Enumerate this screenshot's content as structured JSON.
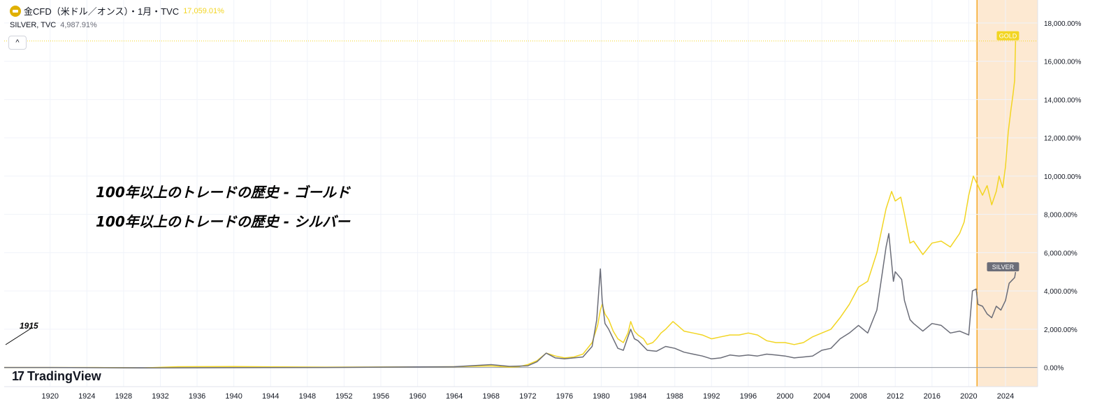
{
  "header": {
    "main_title": "金CFD（米ドル／オンス）・1月・TVC",
    "main_value": "17,059.01%",
    "secondary_title": "SILVER, TVC",
    "secondary_value": "4,987.91%",
    "collapse_label": "^"
  },
  "annotations": {
    "line1": "100年以上のトレードの歴史 - ゴールド",
    "line2": "100年以上のトレードの歴史 - シルバー",
    "start_year": "1915"
  },
  "brand": {
    "logo_mark": "17",
    "name": "TradingView"
  },
  "colors": {
    "gold": "#f2d522",
    "silver": "#6b6d78",
    "highlight": "#fde9d2",
    "highlight_edge": "#f5a623",
    "grid": "#f0f3fa"
  },
  "chart_data": {
    "type": "line",
    "series": [
      {
        "name": "GOLD",
        "points": [
          [
            1915,
            0
          ],
          [
            1920,
            0
          ],
          [
            1925,
            0
          ],
          [
            1930,
            -20
          ],
          [
            1934,
            40
          ],
          [
            1940,
            50
          ],
          [
            1950,
            20
          ],
          [
            1960,
            30
          ],
          [
            1964,
            40
          ],
          [
            1968,
            80
          ],
          [
            1970,
            20
          ],
          [
            1971,
            40
          ],
          [
            1972,
            150
          ],
          [
            1973,
            350
          ],
          [
            1974,
            750
          ],
          [
            1975,
            600
          ],
          [
            1976,
            500
          ],
          [
            1977,
            550
          ],
          [
            1978,
            700
          ],
          [
            1979,
            1300
          ],
          [
            1979.6,
            2200
          ],
          [
            1979.9,
            3000
          ],
          [
            1980.1,
            3300
          ],
          [
            1980.4,
            2800
          ],
          [
            1980.8,
            2500
          ],
          [
            1981.3,
            1900
          ],
          [
            1981.8,
            1500
          ],
          [
            1982.4,
            1300
          ],
          [
            1982.9,
            1800
          ],
          [
            1983.2,
            2400
          ],
          [
            1983.6,
            1900
          ],
          [
            1984,
            1700
          ],
          [
            1984.6,
            1500
          ],
          [
            1985,
            1200
          ],
          [
            1985.6,
            1300
          ],
          [
            1986,
            1500
          ],
          [
            1986.5,
            1800
          ],
          [
            1987,
            2000
          ],
          [
            1987.8,
            2400
          ],
          [
            1988.3,
            2200
          ],
          [
            1989,
            1900
          ],
          [
            1990,
            1800
          ],
          [
            1991,
            1700
          ],
          [
            1992,
            1500
          ],
          [
            1993,
            1600
          ],
          [
            1994,
            1700
          ],
          [
            1995,
            1700
          ],
          [
            1996,
            1800
          ],
          [
            1997,
            1700
          ],
          [
            1998,
            1400
          ],
          [
            1999,
            1300
          ],
          [
            2000,
            1300
          ],
          [
            2001,
            1200
          ],
          [
            2002,
            1300
          ],
          [
            2003,
            1600
          ],
          [
            2004,
            1800
          ],
          [
            2005,
            2000
          ],
          [
            2006,
            2600
          ],
          [
            2007,
            3300
          ],
          [
            2008,
            4200
          ],
          [
            2009,
            4500
          ],
          [
            2010,
            6000
          ],
          [
            2011,
            8300
          ],
          [
            2011.6,
            9200
          ],
          [
            2012,
            8700
          ],
          [
            2012.6,
            8900
          ],
          [
            2013,
            8000
          ],
          [
            2013.6,
            6500
          ],
          [
            2014,
            6600
          ],
          [
            2015,
            5900
          ],
          [
            2016,
            6500
          ],
          [
            2017,
            6600
          ],
          [
            2018,
            6300
          ],
          [
            2019,
            7000
          ],
          [
            2019.5,
            7600
          ],
          [
            2020,
            9000
          ],
          [
            2020.5,
            10000
          ],
          [
            2021,
            9500
          ],
          [
            2021.5,
            9000
          ],
          [
            2022,
            9500
          ],
          [
            2022.5,
            8500
          ],
          [
            2023,
            9200
          ],
          [
            2023.3,
            10000
          ],
          [
            2023.7,
            9400
          ],
          [
            2024,
            10500
          ],
          [
            2024.3,
            12300
          ],
          [
            2024.6,
            13500
          ],
          [
            2024.8,
            14200
          ],
          [
            2025,
            15000
          ],
          [
            2025.1,
            17059
          ]
        ]
      },
      {
        "name": "SILVER",
        "points": [
          [
            1915,
            0
          ],
          [
            1920,
            0
          ],
          [
            1930,
            -20
          ],
          [
            1940,
            -10
          ],
          [
            1950,
            0
          ],
          [
            1960,
            30
          ],
          [
            1964,
            40
          ],
          [
            1968,
            150
          ],
          [
            1970,
            60
          ],
          [
            1972,
            90
          ],
          [
            1973,
            300
          ],
          [
            1974,
            750
          ],
          [
            1975,
            500
          ],
          [
            1976,
            450
          ],
          [
            1977,
            500
          ],
          [
            1978,
            550
          ],
          [
            1979,
            1100
          ],
          [
            1979.5,
            2500
          ],
          [
            1979.8,
            4500
          ],
          [
            1979.9,
            5150
          ],
          [
            1980.1,
            3500
          ],
          [
            1980.4,
            2300
          ],
          [
            1980.8,
            2000
          ],
          [
            1981.3,
            1500
          ],
          [
            1981.8,
            1000
          ],
          [
            1982.4,
            900
          ],
          [
            1982.9,
            1600
          ],
          [
            1983.2,
            2000
          ],
          [
            1983.6,
            1500
          ],
          [
            1984,
            1400
          ],
          [
            1985,
            900
          ],
          [
            1986,
            850
          ],
          [
            1987,
            1100
          ],
          [
            1988,
            1000
          ],
          [
            1989,
            800
          ],
          [
            1990,
            700
          ],
          [
            1991,
            600
          ],
          [
            1992,
            450
          ],
          [
            1993,
            500
          ],
          [
            1994,
            650
          ],
          [
            1995,
            600
          ],
          [
            1996,
            650
          ],
          [
            1997,
            600
          ],
          [
            1998,
            700
          ],
          [
            1999,
            650
          ],
          [
            2000,
            600
          ],
          [
            2001,
            500
          ],
          [
            2002,
            550
          ],
          [
            2003,
            600
          ],
          [
            2004,
            900
          ],
          [
            2005,
            1000
          ],
          [
            2006,
            1500
          ],
          [
            2007,
            1800
          ],
          [
            2008,
            2200
          ],
          [
            2009,
            1800
          ],
          [
            2010,
            3000
          ],
          [
            2011,
            6300
          ],
          [
            2011.3,
            7000
          ],
          [
            2011.8,
            4500
          ],
          [
            2012,
            5000
          ],
          [
            2012.7,
            4600
          ],
          [
            2013,
            3500
          ],
          [
            2013.6,
            2500
          ],
          [
            2014,
            2300
          ],
          [
            2015,
            1900
          ],
          [
            2016,
            2300
          ],
          [
            2017,
            2200
          ],
          [
            2018,
            1800
          ],
          [
            2019,
            1900
          ],
          [
            2020,
            1700
          ],
          [
            2020.4,
            4000
          ],
          [
            2020.8,
            4100
          ],
          [
            2021,
            3300
          ],
          [
            2021.5,
            3200
          ],
          [
            2022,
            2800
          ],
          [
            2022.5,
            2600
          ],
          [
            2023,
            3200
          ],
          [
            2023.5,
            3000
          ],
          [
            2024,
            3500
          ],
          [
            2024.4,
            4400
          ],
          [
            2024.8,
            4600
          ],
          [
            2025,
            4700
          ],
          [
            2025.1,
            4988
          ]
        ]
      }
    ],
    "x_ticks": [
      "1920",
      "1924",
      "1928",
      "1932",
      "1936",
      "1940",
      "1944",
      "1948",
      "1952",
      "1956",
      "1960",
      "1964",
      "1968",
      "1972",
      "1976",
      "1980",
      "1984",
      "1988",
      "1992",
      "1996",
      "2000",
      "2004",
      "2008",
      "2012",
      "2016",
      "2020",
      "2024"
    ],
    "y_ticks": [
      "0.00%",
      "2,000.00%",
      "4,000.00%",
      "6,000.00%",
      "8,000.00%",
      "10,000.00%",
      "12,000.00%",
      "14,000.00%",
      "16,000.00%",
      "18,000.00%"
    ],
    "x_range": [
      1915,
      2027.5
    ],
    "y_range": [
      -1000,
      19200
    ],
    "highlight_range": [
      2020.9,
      2027.5
    ],
    "last_value_labels": [
      "GOLD",
      "SILVER"
    ],
    "grid": true
  }
}
